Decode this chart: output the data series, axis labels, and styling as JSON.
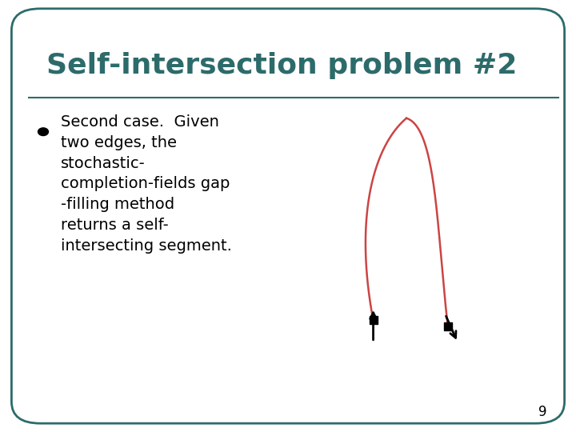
{
  "title": "Self-intersection problem #2",
  "title_color": "#2d6b6b",
  "title_fontsize": 26,
  "background_color": "#ffffff",
  "border_color": "#2d6b6b",
  "bullet_color": "#000000",
  "bullet_fontsize": 14,
  "page_number": "9",
  "curve_color": "#cc4444",
  "arrow_color": "#000000",
  "bullet_lines": [
    "Second case.  Given",
    "two edges, the",
    "stochastic-",
    "completion-fields gap",
    "-filling method",
    "returns a self-",
    "intersecting segment."
  ]
}
